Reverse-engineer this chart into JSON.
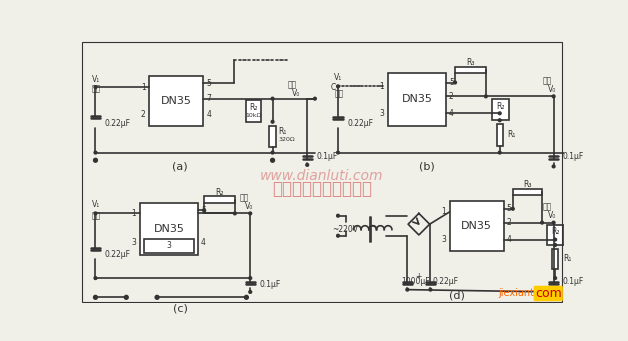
{
  "bg_color": "#f0efe8",
  "line_color": "#333333",
  "lw": 1.2,
  "lw_thick": 1.8,
  "watermark_text": "杭州将睿科技有限公司",
  "watermark_color": "#cc3333",
  "watermark_alpha": 0.55,
  "dianluti_text": "www.dianluti.com",
  "dianluti_color": "#cc4444",
  "dianluti_alpha": 0.45,
  "jiexiantu_text": "jiexiantu",
  "jiexiantu_color": "#ff6600",
  "com_text": "com",
  "com_color": "#cc0000",
  "dn35": "DN35",
  "output_cn": "输出",
  "input_cn": "输入",
  "cap_022": "0.22μF",
  "cap_01": "0.1μF",
  "r1": "R₁",
  "r2": "R₂",
  "r3": "R₃",
  "v1": "V₁",
  "v0": "V₀",
  "r1_val_a": "320Ω",
  "r2_val_a": "10kΩ",
  "v220": "~220V",
  "cap_1000": "1000μF",
  "label_a": "(a)",
  "label_b": "(b)",
  "label_c": "(c)",
  "label_d": "(d)",
  "fs_large": 7,
  "fs_small": 5.5,
  "fs_watermark": 12
}
